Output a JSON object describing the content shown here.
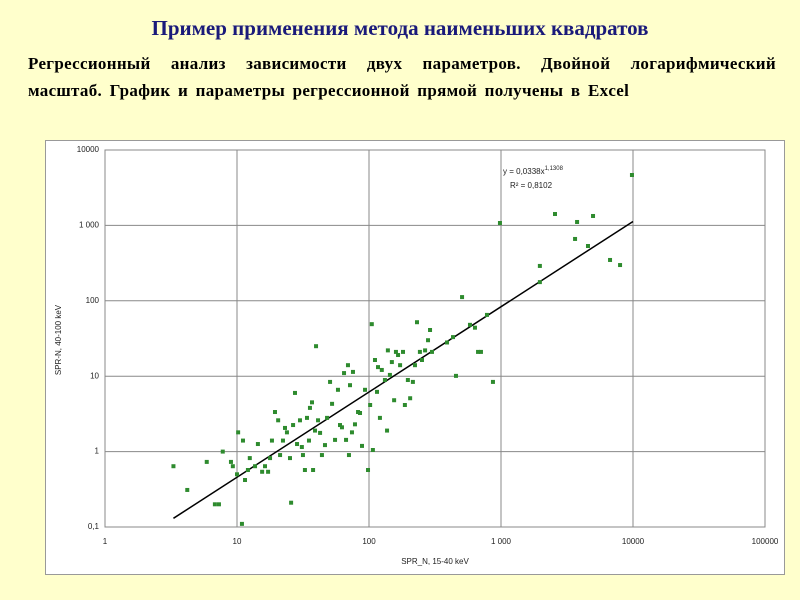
{
  "chart_data": {
    "type": "scatter",
    "title": "Пример применения метода наименьших квадратов",
    "subtitle": "Регрессионный анализ зависимости двух параметров. Двойной логарифмический масштаб. График и параметры регрессионной прямой получены в Excel",
    "x_label": "SPR_N, 15-40 keV",
    "y_label": "SPR-N, 40-100 keV",
    "xscale": "log",
    "yscale": "log",
    "grid": true,
    "xlim": [
      1,
      100000
    ],
    "ylim": [
      0.1,
      10000
    ],
    "xticks": [
      1,
      10,
      100,
      {
        "value": 1000,
        "label": "1 000"
      },
      10000,
      100000
    ],
    "yticks": [
      {
        "value": 0.1,
        "label": "0,1"
      },
      1,
      10,
      100,
      {
        "value": 1000,
        "label": "1 000"
      },
      10000
    ],
    "color": "#2e8b2e",
    "x": [
      3.3,
      4.2,
      5.9,
      6.8,
      7.3,
      7.8,
      9.0,
      9.3,
      10,
      10.2,
      10.9,
      11.5,
      11.1,
      12.1,
      12.5,
      13.7,
      14.4,
      15.5,
      16.3,
      17.2,
      17.8,
      18.4,
      19.4,
      20.5,
      21.2,
      22.3,
      23.1,
      23.9,
      25.2,
      25.7,
      26.6,
      27.5,
      28.5,
      30,
      31,
      31.6,
      32.7,
      33.9,
      35.1,
      35.7,
      37,
      37.7,
      39,
      39.7,
      41.1,
      42.6,
      44,
      46.4,
      48.1,
      50.7,
      52.5,
      55.3,
      58.2,
      60.3,
      62.4,
      64.7,
      67,
      69.3,
      70.5,
      71.8,
      74.3,
      75.6,
      78.3,
      82.6,
      85.5,
      88.5,
      93.3,
      98.3,
      102,
      105,
      107,
      111,
      115,
      117,
      121,
      125,
      132,
      137,
      139,
      144,
      149,
      155,
      160,
      166,
      172,
      181,
      187,
      197,
      205,
      215,
      223,
      231,
      243,
      252,
      266,
      280,
      290,
      300,
      390,
      433,
      456,
      507,
      582,
      635,
      670,
      705,
      783,
      869,
      982,
      1970,
      1970,
      2565,
      3640,
      3770,
      4560,
      4980,
      6700,
      7980,
      9820
    ],
    "values": [
      0.64,
      0.31,
      0.73,
      0.2,
      0.2,
      1.0,
      0.73,
      0.64,
      0.5,
      1.8,
      0.11,
      0.42,
      1.4,
      0.57,
      0.82,
      0.64,
      1.26,
      0.54,
      0.64,
      0.54,
      0.82,
      1.4,
      3.35,
      2.6,
      0.9,
      1.4,
      2.06,
      1.8,
      0.82,
      0.21,
      2.25,
      6.0,
      1.26,
      2.6,
      1.15,
      0.9,
      0.57,
      2.8,
      1.4,
      3.8,
      4.5,
      0.57,
      1.9,
      25,
      2.6,
      1.77,
      0.9,
      1.22,
      2.8,
      8.4,
      4.3,
      1.43,
      6.6,
      2.25,
      2.1,
      11,
      1.43,
      14,
      0.9,
      7.6,
      1.8,
      11.4,
      2.3,
      3.35,
      3.25,
      1.19,
      6.6,
      0.57,
      4.15,
      49,
      1.05,
      16.4,
      6.2,
      13.2,
      2.8,
      12.1,
      8.9,
      1.9,
      22,
      10.4,
      15.4,
      4.8,
      21,
      19.1,
      14,
      21,
      4.15,
      8.9,
      5.1,
      8.4,
      14,
      52,
      21,
      16.4,
      22,
      30,
      41,
      21,
      28,
      33,
      10.1,
      112,
      48,
      44,
      21,
      21,
      65,
      8.4,
      1076,
      177,
      290,
      1416,
      661,
      1110,
      533,
      1333,
      348,
      298,
      4660
    ],
    "trendline": {
      "coefficient": 0.0338,
      "exponent": 1.1308,
      "x_start": 3.3,
      "x_end": 10000,
      "color": "#000000"
    },
    "annotations": {
      "equation": "y = 0,0338x",
      "equation_exponent": "1,1308",
      "r_squared": "R² = 0,8102"
    }
  }
}
